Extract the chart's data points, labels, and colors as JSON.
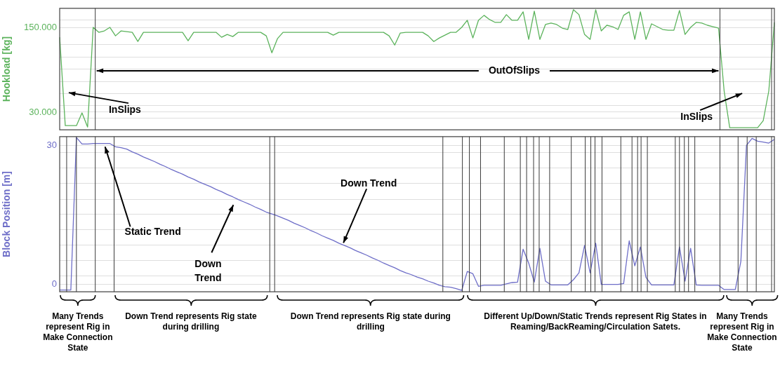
{
  "chart_data": [
    {
      "type": "line",
      "ylabel": "Hookload [kg]",
      "categories": [
        null,
        null,
        null,
        null,
        null,
        null,
        null,
        null,
        null,
        null,
        null,
        null,
        null,
        null,
        null,
        null,
        null,
        null,
        null,
        null,
        null,
        null,
        null,
        null,
        null,
        null,
        null,
        null,
        null,
        null,
        null,
        null,
        null,
        null,
        null,
        null,
        null,
        null,
        null,
        null,
        null,
        null,
        null,
        null,
        null,
        null,
        null,
        null,
        null,
        null,
        null,
        null,
        null,
        null,
        null,
        null,
        null,
        null,
        null,
        null,
        null,
        null,
        null,
        null,
        null,
        null,
        null,
        null,
        null,
        null,
        null,
        null,
        null,
        null,
        null,
        null,
        null,
        null,
        null,
        null,
        null,
        null,
        null,
        null,
        null,
        null,
        null,
        null,
        null,
        null,
        null,
        null,
        null,
        null,
        null,
        null,
        null,
        null,
        null,
        null,
        null,
        null,
        null,
        null,
        null,
        null,
        null,
        null,
        null,
        null,
        null,
        null,
        null,
        null,
        null,
        null,
        null,
        null,
        null,
        null,
        null,
        null,
        null,
        null,
        null,
        null,
        null,
        null,
        null
      ],
      "ylim": [
        5000,
        177000
      ],
      "yticks": [
        {
          "value": 22000,
          "label": null
        },
        {
          "value": 30000,
          "label": "30.000"
        },
        {
          "value": 39000,
          "label": null
        },
        {
          "value": 56000,
          "label": null
        },
        {
          "value": 73000,
          "label": null
        },
        {
          "value": 91000,
          "label": null
        },
        {
          "value": 108000,
          "label": null
        },
        {
          "value": 126000,
          "label": null
        },
        {
          "value": 150000,
          "label": "150.000"
        },
        {
          "value": 160000,
          "label": null
        }
      ],
      "grid": "y",
      "legend": false,
      "tick_labels": "y",
      "marker": "none",
      "series": [
        {
          "color": "#5cb35c",
          "values": [
            136000,
            11000,
            11000,
            11000,
            29000,
            9000,
            150000,
            143000,
            145000,
            150000,
            138000,
            145000,
            144000,
            143000,
            130000,
            143000,
            143000,
            143000,
            143000,
            143000,
            143000,
            143000,
            143000,
            131000,
            143000,
            143000,
            143000,
            143000,
            143000,
            136000,
            140000,
            137000,
            143000,
            143000,
            143000,
            143000,
            143000,
            138000,
            114000,
            134000,
            143000,
            143000,
            143000,
            143000,
            143000,
            143000,
            143000,
            143000,
            143000,
            139000,
            143000,
            143000,
            143000,
            143000,
            143000,
            143000,
            143000,
            143000,
            143000,
            138000,
            125000,
            142000,
            143000,
            143000,
            143000,
            143000,
            138000,
            130000,
            135000,
            139000,
            143000,
            143000,
            150000,
            160000,
            135000,
            160000,
            167000,
            161000,
            157000,
            157000,
            168000,
            160000,
            160000,
            172000,
            133000,
            173000,
            133000,
            154000,
            156000,
            154000,
            149000,
            147000,
            175000,
            168000,
            140000,
            133000,
            175000,
            145000,
            153000,
            151000,
            147000,
            167000,
            172000,
            133000,
            172000,
            133000,
            155000,
            151000,
            147000,
            146000,
            146000,
            174000,
            140000,
            150000,
            157000,
            156000,
            153000,
            151000,
            149000,
            60000,
            8000,
            8000,
            8000,
            8000,
            8000,
            8000,
            18000,
            60000,
            157000
          ]
        }
      ],
      "annotations": [
        "InSlips",
        "OutOfSlips",
        "InSlips"
      ]
    },
    {
      "type": "line",
      "ylabel": "Block Position [m]",
      "categories": [
        null,
        null,
        null,
        null,
        null,
        null,
        null,
        null,
        null,
        null,
        null,
        null,
        null,
        null,
        null,
        null,
        null,
        null,
        null,
        null,
        null,
        null,
        null,
        null,
        null,
        null,
        null,
        null,
        null,
        null,
        null,
        null,
        null,
        null,
        null,
        null,
        null,
        null,
        null,
        null,
        null,
        null,
        null,
        null,
        null,
        null,
        null,
        null,
        null,
        null,
        null,
        null,
        null,
        null,
        null,
        null,
        null,
        null,
        null,
        null,
        null,
        null,
        null,
        null,
        null,
        null,
        null,
        null,
        null,
        null,
        null,
        null,
        null,
        null,
        null,
        null,
        null,
        null,
        null,
        null,
        null,
        null,
        null,
        null,
        null,
        null,
        null,
        null,
        null,
        null,
        null,
        null,
        null,
        null,
        null,
        null,
        null,
        null,
        null,
        null,
        null,
        null,
        null,
        null,
        null,
        null,
        null,
        null,
        null,
        null,
        null,
        null,
        null,
        null,
        null,
        null,
        null,
        null,
        null,
        null,
        null,
        null,
        null,
        null,
        null,
        null,
        null,
        null,
        null
      ],
      "ylim": [
        -1.6,
        31.9
      ],
      "yticks": [
        0,
        {
          "value": 1.9,
          "label": null
        },
        {
          "value": 5.2,
          "label": null
        },
        {
          "value": 8.5,
          "label": null
        },
        {
          "value": 11.8,
          "label": null
        },
        {
          "value": 15.1,
          "label": null
        },
        {
          "value": 18.4,
          "label": null
        },
        {
          "value": 21.8,
          "label": null
        },
        {
          "value": 25.1,
          "label": null
        },
        {
          "value": 28.5,
          "label": null
        },
        30
      ],
      "grid": "y",
      "legend": false,
      "tick_labels": "y",
      "marker": "none",
      "series": [
        {
          "color": "#6e6ec8",
          "values": [
            -1.2,
            -1.2,
            -1.2,
            31.7,
            30.3,
            30.3,
            30.4,
            30.4,
            30.4,
            30.4,
            29.7,
            29.5,
            29.2,
            28.6,
            28.1,
            27.5,
            27.0,
            26.5,
            25.9,
            25.4,
            24.8,
            24.3,
            23.8,
            23.2,
            22.7,
            22.1,
            21.6,
            21.1,
            20.5,
            20.0,
            19.4,
            18.9,
            18.3,
            17.8,
            17.3,
            16.7,
            16.2,
            15.6,
            15.2,
            14.8,
            14.3,
            13.8,
            13.2,
            12.7,
            12.2,
            11.6,
            11.1,
            10.5,
            10.0,
            9.5,
            8.9,
            8.4,
            7.9,
            7.3,
            6.8,
            6.3,
            5.7,
            5.2,
            4.6,
            4.1,
            3.6,
            3.0,
            2.5,
            2.1,
            1.6,
            1.2,
            0.7,
            0.3,
            -0.2,
            -0.5,
            -0.6,
            -0.9,
            -1.3,
            2.8,
            2.3,
            -0.4,
            -0.2,
            -0.2,
            -0.2,
            -0.2,
            0.1,
            0.4,
            0.5,
            7.6,
            4.6,
            0.5,
            7.8,
            0.7,
            -0.1,
            -0.1,
            -0.1,
            -0.1,
            1.0,
            2.5,
            8.4,
            2.5,
            8.9,
            0,
            0,
            0,
            0,
            0.2,
            9.4,
            4.0,
            8.1,
            1.5,
            -0.1,
            -0.1,
            -0.1,
            -0.1,
            -0.1,
            8.1,
            0.7,
            7.8,
            -0.1,
            -0.2,
            -0.2,
            -0.2,
            -0.2,
            -1.1,
            -1.1,
            -1.1,
            5.0,
            30.0,
            31.5,
            30.9,
            30.7,
            30.5,
            31.3
          ]
        }
      ],
      "annotations": [
        "Static Trend",
        "Down Trend",
        "Down Trend",
        "Many Trends represent Rig in Make Connection State",
        "Down Trend represents Rig state during drilling",
        "Down Trend represents Rig state during drilling",
        "Different Up/Down/Static Trends represent Rig States in Reaming/BackReaming/Circulation Satets.",
        "Many Trends represent Rig in Make Connection State"
      ]
    }
  ]
}
